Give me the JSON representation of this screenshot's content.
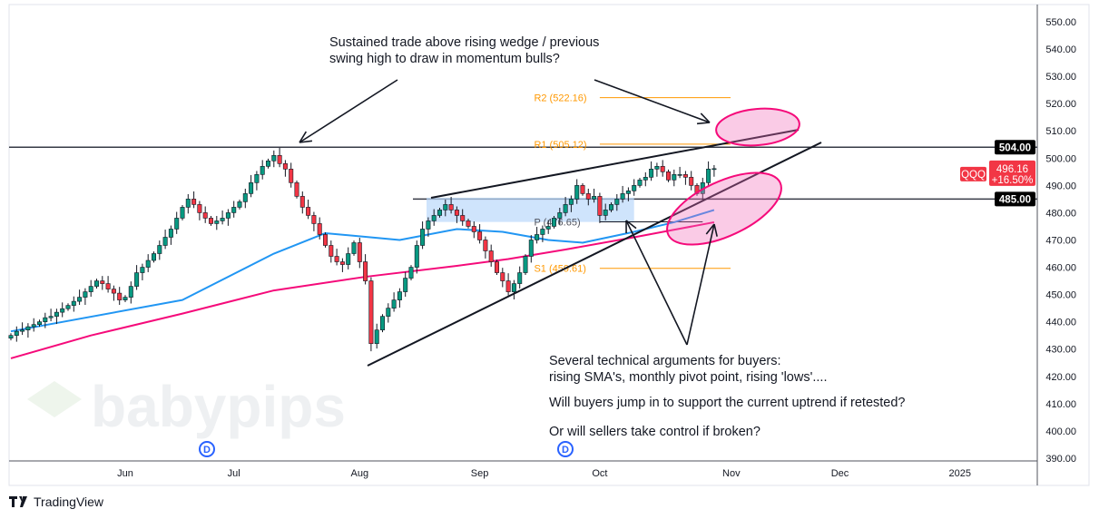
{
  "chart_data": {
    "type": "candlestick",
    "symbol": "QQQ",
    "last_price": "496.16",
    "change_pct": "+16.50%",
    "y_ticks": [
      "550.00",
      "540.00",
      "530.00",
      "520.00",
      "510.00",
      "500.00",
      "490.00",
      "480.00",
      "470.00",
      "460.00",
      "450.00",
      "440.00",
      "430.00",
      "420.00",
      "410.00",
      "400.00",
      "390.00"
    ],
    "ylim": [
      387,
      555
    ],
    "x_ticks": [
      {
        "label": "Jun",
        "bar": 20
      },
      {
        "label": "Jul",
        "bar": 39
      },
      {
        "label": "Aug",
        "bar": 61
      },
      {
        "label": "Sep",
        "bar": 82
      },
      {
        "label": "Oct",
        "bar": 103
      },
      {
        "label": "Nov",
        "bar": 126
      },
      {
        "label": "Dec",
        "bar": 145
      },
      {
        "label": "2025",
        "bar": 166
      }
    ],
    "closes": [
      435,
      436.5,
      437,
      438.2,
      439,
      440,
      441.5,
      442,
      443.5,
      444.8,
      446,
      447.5,
      449,
      451,
      453,
      455,
      454,
      452,
      450.5,
      448,
      449,
      453,
      458,
      460,
      462.5,
      465,
      468,
      471,
      474,
      478,
      482,
      485,
      483,
      480,
      478,
      476,
      477,
      478,
      480,
      482,
      484,
      487,
      491,
      494,
      497,
      499,
      501,
      498,
      496,
      491,
      486,
      482,
      479,
      476,
      472,
      468,
      464,
      462,
      461,
      465,
      469,
      462,
      455,
      432,
      437,
      442,
      445,
      448,
      451,
      456,
      460,
      468,
      474,
      477,
      479,
      481,
      483,
      481,
      479,
      477,
      475,
      473,
      470,
      466,
      462,
      458,
      455,
      451,
      454,
      458,
      464,
      470,
      472,
      474,
      475,
      478,
      480,
      483,
      485,
      490,
      487,
      485,
      486,
      479,
      481,
      483,
      485,
      487,
      488,
      490,
      492,
      493,
      496,
      497,
      495,
      492,
      494,
      494,
      493,
      490,
      487,
      491,
      496,
      496.16
    ],
    "sma_blue": [
      [
        0,
        436.5
      ],
      [
        30,
        448
      ],
      [
        46,
        465
      ],
      [
        55,
        472.5
      ],
      [
        68,
        470
      ],
      [
        78,
        474
      ],
      [
        86,
        473
      ],
      [
        94,
        470
      ],
      [
        100,
        469
      ],
      [
        109,
        473
      ],
      [
        116,
        476.5
      ],
      [
        123,
        481
      ]
    ],
    "sma_pink": [
      [
        0,
        426.6
      ],
      [
        14,
        435
      ],
      [
        30,
        443
      ],
      [
        46,
        451.5
      ],
      [
        62,
        456.5
      ],
      [
        78,
        460.5
      ],
      [
        87,
        463
      ],
      [
        97,
        466.5
      ],
      [
        109,
        471
      ],
      [
        123,
        476.5
      ]
    ],
    "levels": {
      "resistance": "504.00",
      "support": "485.00"
    },
    "pivots": [
      {
        "label": "R2 (522.16)",
        "value": 522.16
      },
      {
        "label": "R1 (505.12)",
        "value": 505.12
      },
      {
        "label": "P (476.65)",
        "value": 476.65
      },
      {
        "label": "S1 (459.61)",
        "value": 459.61
      }
    ],
    "dividend_marker": "D",
    "colors": {
      "up": "#089981",
      "down": "#f23645",
      "sma_blue": "#2196f3",
      "sma_pink": "#f50a7a",
      "pivot": "#ff9800",
      "ellipse": "#f06bb6"
    }
  },
  "annotations": {
    "top": "Sustained trade above rising wedge / previous\nswing high to draw in momentum bulls?",
    "bottom1": "Several technical arguments for buyers:\nrising SMA's, monthly pivot point, rising 'lows'....",
    "bottom2": "Will buyers jump in to support the current uptrend if retested?",
    "bottom3": "Or will sellers take control if broken?"
  },
  "watermark": "babypips",
  "brand": "TradingView"
}
